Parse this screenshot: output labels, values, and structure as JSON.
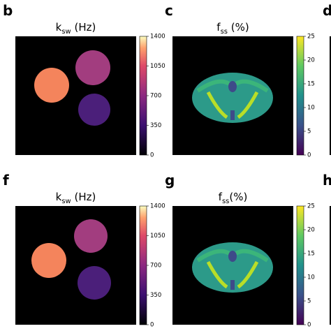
{
  "panels": [
    {
      "letter": "b",
      "title": {
        "symbol": "k",
        "subscript": "sw",
        "unit": " (Hz)"
      },
      "colorbar": {
        "map": "magma",
        "ticks": [
          "0",
          "350",
          "700",
          "1050",
          "1400"
        ]
      }
    },
    {
      "letter": "c",
      "title": {
        "symbol": "f",
        "subscript": "ss",
        "unit": " (%)"
      },
      "colorbar": {
        "map": "viridis",
        "ticks": [
          "0",
          "5",
          "10",
          "15",
          "20",
          "25"
        ]
      }
    },
    {
      "letter": "d"
    },
    {
      "letter": "f",
      "title": {
        "symbol": "k",
        "subscript": "sw",
        "unit": " (Hz)"
      },
      "colorbar": {
        "map": "magma",
        "ticks": [
          "0",
          "350",
          "700",
          "1050",
          "1400"
        ]
      }
    },
    {
      "letter": "g",
      "title": {
        "symbol": "f",
        "subscript": "ss",
        "unit": "(%)"
      },
      "colorbar": {
        "map": "viridis",
        "ticks": [
          "0",
          "5",
          "10",
          "15",
          "20",
          "25"
        ]
      }
    },
    {
      "letter": "h"
    }
  ]
}
